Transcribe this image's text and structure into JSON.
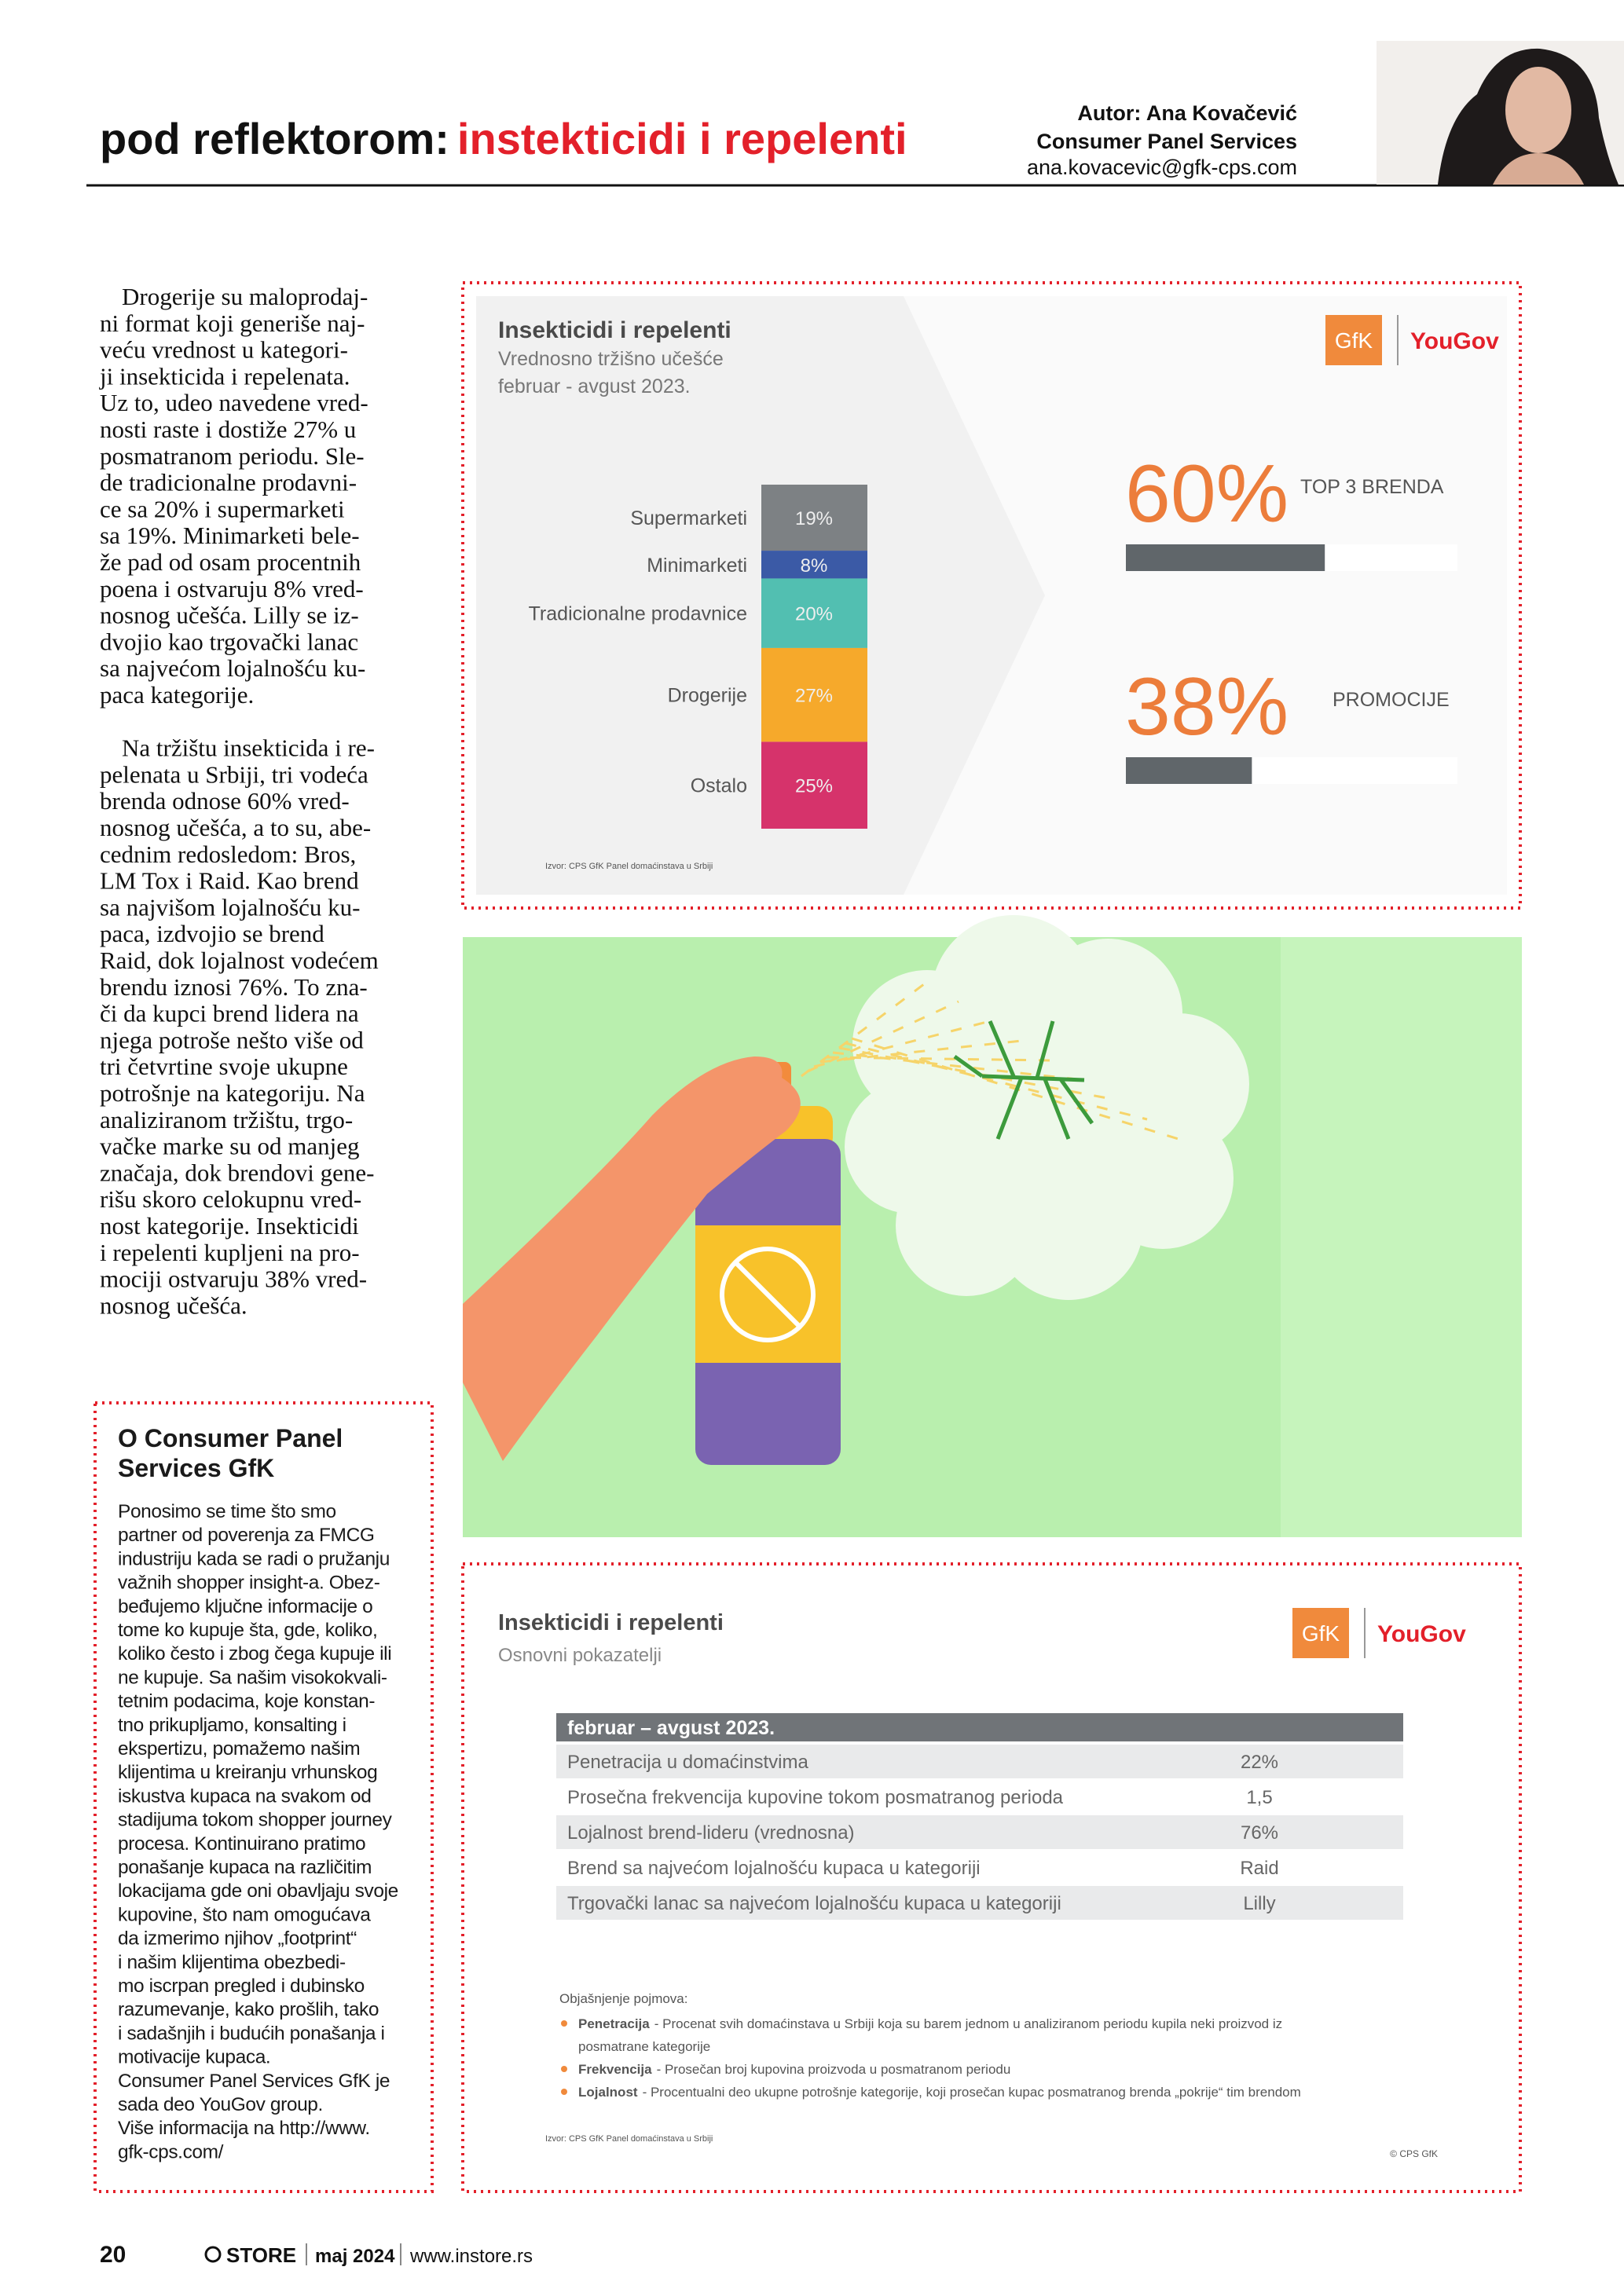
{
  "header": {
    "section": "pod reflektorom:",
    "title": "instekticidi i repelenti",
    "author": "Autor: Ana Kovačević",
    "organization": "Consumer Panel Services",
    "email": "ana.kovacevic@gfk-cps.com"
  },
  "article": {
    "paragraphs": [
      [
        "Drogerije su maloprodaj-",
        "ni format koji generiše naj-",
        "veću vrednost u kategori-",
        "ji insekticida i repelenata.",
        "Uz to, udeo navedene vred-",
        "nosti raste i dostiže 27% u",
        "posmatranom periodu. Sle-",
        "de tradicionalne prodavni-",
        "ce sa 20% i supermarketi",
        "sa 19%. Minimarketi bele-",
        "že pad od osam procentnih",
        "poena i ostvaruju 8% vred-",
        "nosnog učešća. Lilly se iz-",
        "dvojio kao trgovački lanac",
        "sa najvećom lojalnošću ku-",
        "paca kategorije."
      ],
      [
        "Na tržištu insekticida i re-",
        "pelenata u Srbiji, tri vodeća",
        "brenda odnose 60% vred-",
        "nosnog učešća, a to su, abe-",
        "cednim redosledom: Bros,",
        "LM Tox i Raid. Kao brend",
        "sa najvišom lojalnošću ku-",
        "paca, izdvojio se brend",
        "Raid, dok lojalnost vodećem",
        "brendu iznosi 76%. To zna-",
        "či da kupci brend lidera na",
        "njega potroše nešto više od",
        "tri četvrtine svoje ukupne",
        "potrošnje na kategoriju.  Na",
        "analiziranom tržištu, trgo-",
        "vačke marke su od manjeg",
        "značaja, dok brendovi gene-",
        "rišu skoro celokupnu vred-",
        "nost kategorije. Insekticidi",
        "i repelenti kupljeni na pro-",
        "mociji ostvaruju 38% vred-",
        "nosnog učešća."
      ]
    ]
  },
  "sidebar": {
    "title": [
      "O Consumer Panel",
      "Services GfK"
    ],
    "lines": [
      "Ponosimo se time što smo",
      "partner od poverenja za FMCG",
      "industriju kada se radi o pružanju",
      "važnih shopper insight-a. Obez-",
      "beđujemo ključne informacije o",
      "tome ko kupuje šta, gde, koliko,",
      "koliko često i zbog čega kupuje ili",
      "ne kupuje. Sa našim visokokvali-",
      "tetnim podacima, koje konstan-",
      "tno prikupljamo, konsalting i",
      "ekspertizu, pomažemo našim",
      "klijentima u kreiranju vrhunskog",
      "iskustva kupaca na svakom od",
      "stadijuma tokom shopper journey",
      "procesa. Kontinuirano pratimo",
      "ponašanje kupaca na različitim",
      "lokacijama gde oni obavljaju svoje",
      "kupovine, što nam omogućava",
      "da izmerimo njihov „footprint“",
      "i našim klijentima obezbedi-",
      "mo iscrpan pregled i dubinsko",
      "razumevanje, kako prošlih, tako",
      "i sadašnjih i budućih ponašanja i",
      "motivacije kupaca.",
      "Consumer Panel Services GfK je",
      "sada deo YouGov group.",
      " Više informacija na http://www.",
      "gfk-cps.com/"
    ]
  },
  "market_share": {
    "title": "Insekticidi i repelenti",
    "subtitle": [
      "Vrednosno tržišno učešće",
      "februar - avgust 2023."
    ],
    "logos": [
      "GfK",
      "YouGov"
    ],
    "segments": [
      {
        "label": "Supermarketi",
        "value": 19,
        "value_label": "19%",
        "color": "#7d8184"
      },
      {
        "label": "Minimarketi",
        "value": 8,
        "value_label": "8%",
        "color": "#3b5aa6"
      },
      {
        "label": "Tradicionalne prodavnice",
        "value": 20,
        "value_label": "20%",
        "color": "#52bfb1"
      },
      {
        "label": "Drogerije",
        "value": 27,
        "value_label": "27%",
        "color": "#f6a92b"
      },
      {
        "label": "Ostalo",
        "value": 25,
        "value_label": "25%",
        "color": "#d6336b"
      }
    ],
    "kpis": [
      {
        "value": 60,
        "value_label": "60%",
        "label": "TOP 3 BRENDA"
      },
      {
        "value": 38,
        "value_label": "38%",
        "label": "PROMOCIJE"
      }
    ],
    "source": "Izvor: CPS GfK Panel domaćinstava u Srbiji"
  },
  "indicators": {
    "title": "Insekticidi i repelenti",
    "subtitle": "Osnovni pokazatelji",
    "logos": [
      "GfK",
      "YouGov"
    ],
    "table": {
      "header": "februar – avgust 2023.",
      "rows": [
        [
          "Penetracija u domaćinstvima",
          "22%"
        ],
        [
          "Prosečna frekvencija kupovine tokom posmatranog perioda",
          "1,5"
        ],
        [
          "Lojalnost brend-lideru (vrednosna)",
          "76%"
        ],
        [
          "Brend sa najvećom lojalnošću kupaca u kategoriji",
          "Raid"
        ],
        [
          "Trgovački lanac sa najvećom lojalnošću kupaca u kategoriji",
          "Lilly"
        ]
      ]
    },
    "definitions": {
      "title": "Objašnjenje pojmova:",
      "items": [
        {
          "term": "Penetracija",
          "text": [
            "- Procenat svih domaćinstava u Srbiji koja su barem jednom u analiziranom periodu kupila neki proizvod iz",
            "posmatrane kategorije"
          ]
        },
        {
          "term": "Frekvencija",
          "text": [
            "- Prosečan broj kupovina proizvoda u posmatranom periodu"
          ]
        },
        {
          "term": "Lojalnost",
          "text": [
            "- Procentualni deo ukupne potrošnje kategorije, koji prosečan kupac posmatranog brenda „pokrije“ tim brendom"
          ]
        }
      ]
    },
    "source": "Izvor: CPS GfK Panel domaćinstava u Srbiji",
    "copyright": "© CPS GfK"
  },
  "footer": {
    "page": "20",
    "brand": "STORE",
    "issue": "maj 2024",
    "site": "www.instore.rs"
  }
}
